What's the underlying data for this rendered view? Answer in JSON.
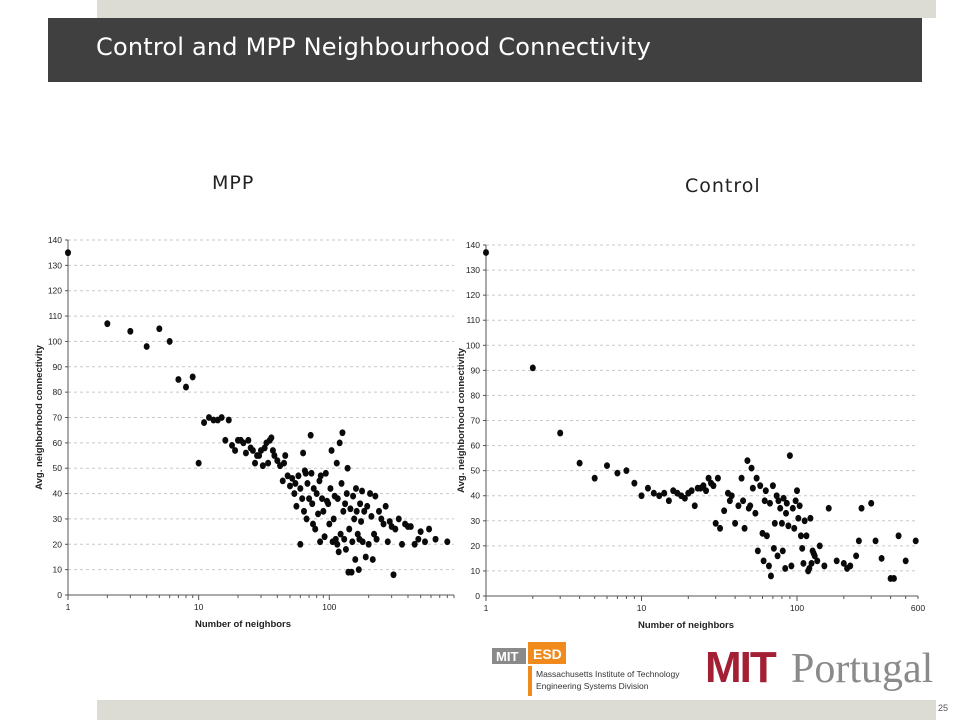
{
  "slide": {
    "title": "Control and MPP Neighbourhood Connectivity",
    "page_number": "25"
  },
  "labels": {
    "left": "MPP",
    "right": "Control"
  },
  "logos": {
    "esd_mit": "MIT",
    "esd_esd": "ESD",
    "esd_line1": "Massachusetts Institute of Technology",
    "esd_line2": "Engineering Systems Division",
    "mitp_mit": "MIT",
    "mitp_portugal": "Portugal"
  },
  "colors": {
    "title_bar": "#404040",
    "strip": "#dcdcd4",
    "esd_orange": "#f08a1c",
    "mit_red": "#a31f34",
    "esd_gray": "#8a8a8a"
  },
  "chart_data": [
    {
      "type": "scatter",
      "name": "MPP",
      "xlabel": "Number of neighbors",
      "ylabel": "Avg. neighborhood connectivity",
      "xscale": "log",
      "xlim": [
        1,
        900
      ],
      "ylim": [
        0,
        140
      ],
      "xticks": [
        "1",
        "10",
        "100"
      ],
      "yticks": [
        "0",
        "10",
        "20",
        "30",
        "40",
        "50",
        "60",
        "70",
        "80",
        "90",
        "100",
        "110",
        "120",
        "130",
        "140"
      ],
      "grid": "dashed",
      "points": [
        [
          1,
          135
        ],
        [
          2,
          107
        ],
        [
          3,
          104
        ],
        [
          4,
          98
        ],
        [
          5,
          105
        ],
        [
          6,
          100
        ],
        [
          7,
          85
        ],
        [
          8,
          82
        ],
        [
          9,
          86
        ],
        [
          10,
          52
        ],
        [
          11,
          68
        ],
        [
          12,
          70
        ],
        [
          13,
          69
        ],
        [
          14,
          69
        ],
        [
          15,
          70
        ],
        [
          16,
          61
        ],
        [
          17,
          69
        ],
        [
          18,
          59
        ],
        [
          19,
          57
        ],
        [
          20,
          61
        ],
        [
          21,
          61
        ],
        [
          22,
          60
        ],
        [
          23,
          56
        ],
        [
          24,
          61
        ],
        [
          25,
          58
        ],
        [
          26,
          57
        ],
        [
          27,
          52
        ],
        [
          28,
          55
        ],
        [
          29,
          55
        ],
        [
          30,
          57
        ],
        [
          31,
          51
        ],
        [
          32,
          58
        ],
        [
          33,
          60
        ],
        [
          34,
          52
        ],
        [
          35,
          61
        ],
        [
          36,
          62
        ],
        [
          37,
          57
        ],
        [
          38,
          55
        ],
        [
          40,
          53
        ],
        [
          42,
          51
        ],
        [
          44,
          45
        ],
        [
          45,
          52
        ],
        [
          46,
          55
        ],
        [
          48,
          47
        ],
        [
          50,
          43
        ],
        [
          52,
          46
        ],
        [
          54,
          40
        ],
        [
          55,
          44
        ],
        [
          56,
          35
        ],
        [
          58,
          47
        ],
        [
          60,
          20
        ],
        [
          60,
          42
        ],
        [
          62,
          38
        ],
        [
          63,
          56
        ],
        [
          64,
          33
        ],
        [
          65,
          49
        ],
        [
          66,
          48
        ],
        [
          67,
          30
        ],
        [
          68,
          44
        ],
        [
          70,
          38
        ],
        [
          72,
          63
        ],
        [
          73,
          48
        ],
        [
          74,
          36
        ],
        [
          75,
          28
        ],
        [
          76,
          42
        ],
        [
          78,
          26
        ],
        [
          80,
          40
        ],
        [
          82,
          32
        ],
        [
          84,
          45
        ],
        [
          85,
          21
        ],
        [
          86,
          47
        ],
        [
          88,
          38
        ],
        [
          90,
          33
        ],
        [
          92,
          23
        ],
        [
          94,
          48
        ],
        [
          96,
          37
        ],
        [
          98,
          36
        ],
        [
          100,
          28
        ],
        [
          102,
          42
        ],
        [
          104,
          57
        ],
        [
          106,
          21
        ],
        [
          108,
          30
        ],
        [
          110,
          39
        ],
        [
          112,
          22
        ],
        [
          114,
          52
        ],
        [
          115,
          20
        ],
        [
          116,
          38
        ],
        [
          118,
          17
        ],
        [
          120,
          60
        ],
        [
          122,
          24
        ],
        [
          124,
          44
        ],
        [
          126,
          64
        ],
        [
          128,
          33
        ],
        [
          130,
          22
        ],
        [
          132,
          36
        ],
        [
          134,
          18
        ],
        [
          136,
          40
        ],
        [
          138,
          50
        ],
        [
          140,
          9
        ],
        [
          142,
          26
        ],
        [
          145,
          34
        ],
        [
          148,
          9
        ],
        [
          150,
          21
        ],
        [
          152,
          39
        ],
        [
          155,
          30
        ],
        [
          158,
          14
        ],
        [
          160,
          42
        ],
        [
          162,
          33
        ],
        [
          165,
          24
        ],
        [
          168,
          10
        ],
        [
          170,
          22
        ],
        [
          172,
          36
        ],
        [
          175,
          29
        ],
        [
          178,
          41
        ],
        [
          180,
          21
        ],
        [
          185,
          33
        ],
        [
          190,
          15
        ],
        [
          195,
          35
        ],
        [
          200,
          20
        ],
        [
          205,
          40
        ],
        [
          210,
          31
        ],
        [
          215,
          14
        ],
        [
          220,
          24
        ],
        [
          225,
          39
        ],
        [
          230,
          22
        ],
        [
          240,
          33
        ],
        [
          250,
          30
        ],
        [
          260,
          28
        ],
        [
          270,
          35
        ],
        [
          280,
          21
        ],
        [
          290,
          29
        ],
        [
          300,
          27
        ],
        [
          310,
          8
        ],
        [
          320,
          26
        ],
        [
          340,
          30
        ],
        [
          360,
          20
        ],
        [
          380,
          28
        ],
        [
          400,
          27
        ],
        [
          420,
          27
        ],
        [
          450,
          20
        ],
        [
          480,
          22
        ],
        [
          500,
          25
        ],
        [
          540,
          21
        ],
        [
          580,
          26
        ],
        [
          650,
          22
        ],
        [
          800,
          21
        ]
      ]
    },
    {
      "type": "scatter",
      "name": "Control",
      "xlabel": "Number of neighbors",
      "ylabel": "Avg. neighborhood connectivity",
      "xscale": "log",
      "xlim": [
        1,
        600
      ],
      "ylim": [
        0,
        140
      ],
      "xticks": [
        "1",
        "10",
        "100",
        "600"
      ],
      "yticks": [
        "0",
        "10",
        "20",
        "30",
        "40",
        "50",
        "60",
        "70",
        "80",
        "90",
        "100",
        "110",
        "120",
        "130",
        "140"
      ],
      "grid": "dashed",
      "points": [
        [
          1,
          137
        ],
        [
          2,
          91
        ],
        [
          3,
          65
        ],
        [
          4,
          53
        ],
        [
          5,
          47
        ],
        [
          6,
          52
        ],
        [
          7,
          49
        ],
        [
          8,
          50
        ],
        [
          9,
          45
        ],
        [
          10,
          40
        ],
        [
          11,
          43
        ],
        [
          12,
          41
        ],
        [
          13,
          40
        ],
        [
          14,
          41
        ],
        [
          15,
          38
        ],
        [
          16,
          42
        ],
        [
          17,
          41
        ],
        [
          18,
          40
        ],
        [
          19,
          39
        ],
        [
          20,
          41
        ],
        [
          21,
          42
        ],
        [
          22,
          36
        ],
        [
          23,
          43
        ],
        [
          24,
          43
        ],
        [
          25,
          44
        ],
        [
          26,
          42
        ],
        [
          27,
          47
        ],
        [
          28,
          45
        ],
        [
          29,
          44
        ],
        [
          30,
          29
        ],
        [
          31,
          47
        ],
        [
          32,
          27
        ],
        [
          34,
          34
        ],
        [
          36,
          41
        ],
        [
          37,
          38
        ],
        [
          38,
          40
        ],
        [
          40,
          29
        ],
        [
          42,
          36
        ],
        [
          44,
          47
        ],
        [
          45,
          38
        ],
        [
          46,
          27
        ],
        [
          48,
          54
        ],
        [
          49,
          35
        ],
        [
          50,
          36
        ],
        [
          51,
          51
        ],
        [
          52,
          43
        ],
        [
          54,
          33
        ],
        [
          55,
          47
        ],
        [
          56,
          18
        ],
        [
          58,
          44
        ],
        [
          60,
          25
        ],
        [
          61,
          14
        ],
        [
          62,
          38
        ],
        [
          63,
          42
        ],
        [
          64,
          24
        ],
        [
          66,
          12
        ],
        [
          67,
          37
        ],
        [
          68,
          8
        ],
        [
          70,
          44
        ],
        [
          71,
          19
        ],
        [
          72,
          29
        ],
        [
          74,
          40
        ],
        [
          75,
          16
        ],
        [
          76,
          38
        ],
        [
          78,
          35
        ],
        [
          80,
          29
        ],
        [
          81,
          18
        ],
        [
          82,
          39
        ],
        [
          84,
          11
        ],
        [
          85,
          33
        ],
        [
          86,
          37
        ],
        [
          88,
          28
        ],
        [
          90,
          56
        ],
        [
          92,
          12
        ],
        [
          94,
          35
        ],
        [
          96,
          27
        ],
        [
          98,
          38
        ],
        [
          100,
          42
        ],
        [
          102,
          31
        ],
        [
          104,
          36
        ],
        [
          106,
          24
        ],
        [
          108,
          19
        ],
        [
          110,
          13
        ],
        [
          112,
          30
        ],
        [
          115,
          24
        ],
        [
          118,
          10
        ],
        [
          120,
          11
        ],
        [
          122,
          31
        ],
        [
          124,
          13
        ],
        [
          126,
          18
        ],
        [
          128,
          17
        ],
        [
          130,
          16
        ],
        [
          135,
          14
        ],
        [
          140,
          20
        ],
        [
          150,
          12
        ],
        [
          160,
          35
        ],
        [
          180,
          14
        ],
        [
          200,
          13
        ],
        [
          210,
          11
        ],
        [
          220,
          12
        ],
        [
          240,
          16
        ],
        [
          250,
          22
        ],
        [
          260,
          35
        ],
        [
          300,
          37
        ],
        [
          320,
          22
        ],
        [
          350,
          15
        ],
        [
          400,
          7
        ],
        [
          420,
          7
        ],
        [
          450,
          24
        ],
        [
          500,
          14
        ],
        [
          580,
          22
        ]
      ]
    }
  ]
}
